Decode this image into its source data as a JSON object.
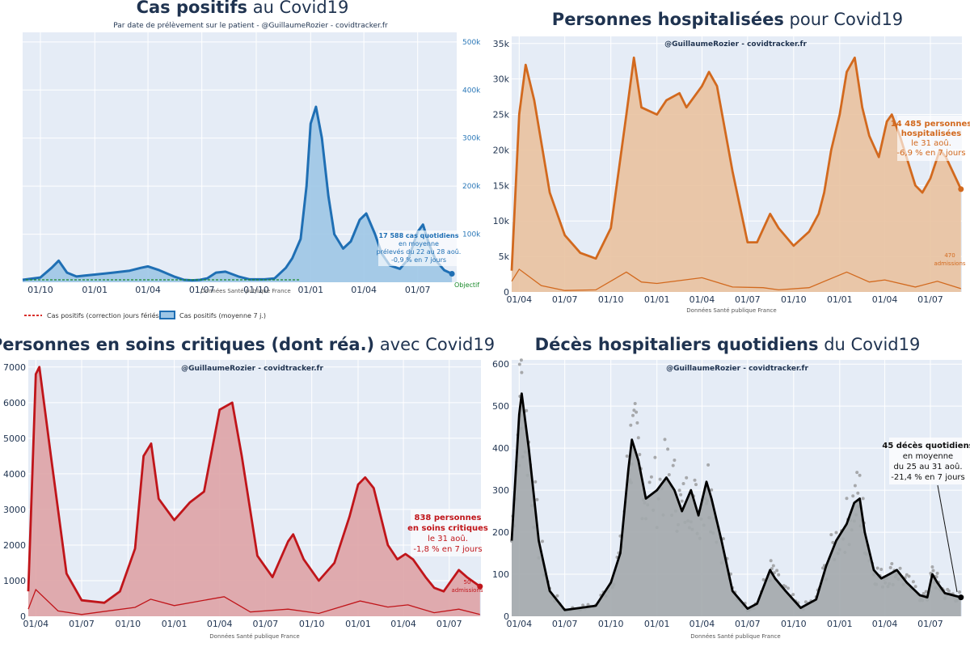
{
  "charts": [
    {
      "key": "cases",
      "title_bold": "Cas positifs",
      "title_rest": " au Covid19",
      "subtitle": "Par date de prélèvement sur le patient - @GuillaumeRozier - covidtracker.fr",
      "source": "Données Santé publique France",
      "x_ticks": [
        "01/10",
        "01/01",
        "01/04",
        "01/07",
        "01/10",
        "01/01",
        "01/04",
        "01/07"
      ],
      "y_ticks": [
        "500k",
        "400k",
        "300k",
        "200k",
        "100k",
        "0"
      ],
      "annotation": [
        "17 588 cas quotidiens",
        "en moyenne",
        "prélevés du 22 au 28 aoû.",
        "-0,9 % en 7 jours"
      ],
      "objective": "Objectif",
      "legend": [
        "Cas positifs (correction jours fériés)",
        "Cas positifs (moyenne 7 j.)"
      ],
      "colors": {
        "line": "#1f6fb4",
        "fill": "#9dc6e6",
        "objective": "#1a8a2a",
        "legend_dash": "#d9302c"
      }
    },
    {
      "key": "hosp",
      "title_bold": "Personnes hospitalisées",
      "title_rest": " pour Covid19",
      "credit": "@GuillaumeRozier - covidtracker.fr",
      "source": "Données Santé publique France",
      "x_ticks": [
        "01/04",
        "01/07",
        "01/10",
        "01/01",
        "01/04",
        "01/07",
        "01/10",
        "01/01",
        "01/04",
        "01/07"
      ],
      "y_ticks": [
        "35k",
        "30k",
        "25k",
        "20k",
        "15k",
        "10k",
        "5k",
        "0"
      ],
      "annotation": [
        "14 485 personnes",
        "hospitalisées",
        "le 31 aoû.",
        "-6,9 % en 7 jours"
      ],
      "admissions": [
        "470",
        "admissions"
      ],
      "colors": {
        "line": "#d2691e",
        "fill": "#e9c2a0"
      }
    },
    {
      "key": "icu",
      "title_bold": "Personnes en soins critiques (dont réa.)",
      "title_rest": " avec Covid19",
      "credit": "@GuillaumeRozier - covidtracker.fr",
      "source": "Données Santé publique France",
      "x_ticks": [
        "01/04",
        "01/07",
        "01/10",
        "01/01",
        "01/04",
        "01/07",
        "01/10",
        "01/01",
        "01/04",
        "01/07"
      ],
      "y_ticks": [
        "7000",
        "6000",
        "5000",
        "4000",
        "3000",
        "2000",
        "1000",
        "0"
      ],
      "annotation": [
        "838 personnes",
        "en soins critiques",
        "le 31 aoû.",
        "-1,8 % en 7 jours"
      ],
      "admissions": [
        "50",
        "admissions"
      ],
      "colors": {
        "line": "#c0151a",
        "fill": "#dea3a6"
      }
    },
    {
      "key": "deaths",
      "title_bold": "Décès hospitaliers quotidiens",
      "title_rest": " du Covid19",
      "credit": "@GuillaumeRozier - covidtracker.fr",
      "source": "Données Santé publique France",
      "x_ticks": [
        "01/04",
        "01/07",
        "01/10",
        "01/01",
        "01/04",
        "01/07",
        "01/10",
        "01/01",
        "01/04",
        "01/07"
      ],
      "y_ticks": [
        "600",
        "500",
        "400",
        "300",
        "200",
        "100",
        "0"
      ],
      "annotation": [
        "45 décès quotidiens",
        "en moyenne",
        "du 25 au 31 aoû.",
        "-21,4 % en 7 jours"
      ],
      "colors": {
        "line": "#000000",
        "fill": "#a3a8ac",
        "dots": "#a6a8ab"
      }
    }
  ],
  "chart_data": [
    {
      "type": "area",
      "title": "Cas positifs au Covid19",
      "ylabel": "",
      "ylim": [
        0,
        520000
      ],
      "series": [
        {
          "name": "Cas positifs (moyenne 7 j.)",
          "x": [
            "2020-09-01",
            "2020-10-01",
            "2020-10-20",
            "2020-11-01",
            "2020-11-15",
            "2020-12-01",
            "2020-12-15",
            "2021-01-01",
            "2021-02-01",
            "2021-03-01",
            "2021-03-20",
            "2021-04-01",
            "2021-04-20",
            "2021-05-15",
            "2021-06-01",
            "2021-06-15",
            "2021-06-28",
            "2021-07-10",
            "2021-07-25",
            "2021-08-10",
            "2021-09-01",
            "2021-09-20",
            "2021-10-15",
            "2021-11-01",
            "2021-11-20",
            "2021-12-01",
            "2021-12-15",
            "2021-12-25",
            "2022-01-01",
            "2022-01-10",
            "2022-01-20",
            "2022-01-31",
            "2022-02-10",
            "2022-02-25",
            "2022-03-10",
            "2022-03-25",
            "2022-04-05",
            "2022-04-20",
            "2022-05-01",
            "2022-05-15",
            "2022-06-01",
            "2022-06-15",
            "2022-07-01",
            "2022-07-10",
            "2022-07-20",
            "2022-08-01",
            "2022-08-15",
            "2022-08-28"
          ],
          "values": [
            5000,
            10000,
            30000,
            45000,
            20000,
            12000,
            14000,
            16000,
            20000,
            24000,
            30000,
            33000,
            25000,
            12000,
            5000,
            4000,
            5000,
            8000,
            20000,
            22000,
            12000,
            6000,
            6000,
            8000,
            30000,
            50000,
            90000,
            200000,
            330000,
            365000,
            300000,
            180000,
            100000,
            70000,
            85000,
            130000,
            143000,
            100000,
            60000,
            35000,
            28000,
            48000,
            105000,
            120000,
            80000,
            45000,
            25000,
            17588
          ]
        }
      ]
    },
    {
      "type": "area",
      "title": "Personnes hospitalisées pour Covid19",
      "ylim": [
        0,
        36000
      ],
      "series": [
        {
          "name": "Personnes hospitalisées",
          "x": [
            "2020-03-17",
            "2020-04-01",
            "2020-04-14",
            "2020-05-01",
            "2020-06-01",
            "2020-07-01",
            "2020-08-01",
            "2020-09-01",
            "2020-10-01",
            "2020-11-01",
            "2020-11-16",
            "2020-12-01",
            "2021-01-01",
            "2021-01-20",
            "2021-02-15",
            "2021-03-01",
            "2021-04-01",
            "2021-04-15",
            "2021-05-01",
            "2021-06-01",
            "2021-07-01",
            "2021-07-20",
            "2021-08-15",
            "2021-09-01",
            "2021-10-01",
            "2021-11-01",
            "2021-11-20",
            "2021-12-01",
            "2021-12-15",
            "2022-01-01",
            "2022-01-15",
            "2022-01-31",
            "2022-02-15",
            "2022-03-01",
            "2022-03-20",
            "2022-04-05",
            "2022-04-15",
            "2022-05-01",
            "2022-06-01",
            "2022-06-15",
            "2022-07-01",
            "2022-07-20",
            "2022-08-01",
            "2022-08-31"
          ],
          "values": [
            3000,
            25000,
            32000,
            27000,
            14000,
            8000,
            5500,
            4700,
            9000,
            25000,
            33000,
            26000,
            25000,
            27000,
            28000,
            26000,
            29000,
            31000,
            29000,
            17000,
            7000,
            7000,
            11000,
            9000,
            6500,
            8500,
            11000,
            14000,
            20000,
            25000,
            31000,
            33000,
            26000,
            22000,
            19000,
            24000,
            25000,
            22000,
            15000,
            14000,
            16000,
            20000,
            19000,
            14485
          ]
        },
        {
          "name": "admissions",
          "x": [
            "2020-03-17",
            "2020-04-01",
            "2020-05-15",
            "2020-07-01",
            "2020-09-01",
            "2020-11-01",
            "2020-12-01",
            "2021-01-01",
            "2021-04-01",
            "2021-06-01",
            "2021-08-01",
            "2021-09-01",
            "2021-11-01",
            "2022-01-15",
            "2022-03-01",
            "2022-04-01",
            "2022-06-01",
            "2022-07-15",
            "2022-08-31"
          ],
          "values": [
            1500,
            3200,
            900,
            200,
            300,
            2800,
            1400,
            1200,
            2000,
            700,
            600,
            300,
            600,
            2800,
            1400,
            1700,
            700,
            1500,
            470
          ]
        }
      ]
    },
    {
      "type": "area",
      "title": "Personnes en soins critiques (dont réa.) avec Covid19",
      "ylim": [
        0,
        7200
      ],
      "series": [
        {
          "name": "Personnes en soins critiques",
          "x": [
            "2020-03-17",
            "2020-04-01",
            "2020-04-08",
            "2020-05-01",
            "2020-06-01",
            "2020-07-01",
            "2020-08-15",
            "2020-09-15",
            "2020-10-15",
            "2020-11-01",
            "2020-11-16",
            "2020-12-01",
            "2021-01-01",
            "2021-02-01",
            "2021-03-01",
            "2021-04-01",
            "2021-04-26",
            "2021-05-15",
            "2021-06-15",
            "2021-07-15",
            "2021-08-15",
            "2021-08-25",
            "2021-09-15",
            "2021-10-15",
            "2021-11-15",
            "2021-12-15",
            "2022-01-01",
            "2022-01-15",
            "2022-02-01",
            "2022-03-01",
            "2022-03-20",
            "2022-04-05",
            "2022-04-20",
            "2022-05-15",
            "2022-06-01",
            "2022-06-20",
            "2022-07-05",
            "2022-07-20",
            "2022-08-05",
            "2022-08-31"
          ],
          "values": [
            700,
            6800,
            7000,
            4500,
            1200,
            450,
            380,
            700,
            1900,
            4500,
            4850,
            3300,
            2700,
            3200,
            3500,
            5800,
            6000,
            4500,
            1700,
            1100,
            2100,
            2300,
            1600,
            1000,
            1500,
            2800,
            3700,
            3900,
            3600,
            2000,
            1600,
            1750,
            1600,
            1100,
            800,
            700,
            1000,
            1300,
            1100,
            838
          ]
        },
        {
          "name": "admissions",
          "x": [
            "2020-03-17",
            "2020-04-01",
            "2020-05-15",
            "2020-07-01",
            "2020-10-15",
            "2020-11-15",
            "2021-01-01",
            "2021-04-10",
            "2021-06-01",
            "2021-08-15",
            "2021-10-15",
            "2022-01-05",
            "2022-03-01",
            "2022-04-10",
            "2022-06-01",
            "2022-07-20",
            "2022-08-31"
          ],
          "values": [
            200,
            750,
            150,
            50,
            250,
            480,
            300,
            550,
            120,
            200,
            80,
            430,
            260,
            320,
            100,
            200,
            50
          ]
        }
      ]
    },
    {
      "type": "line",
      "title": "Décès hospitaliers quotidiens du Covid19",
      "ylim": [
        0,
        610
      ],
      "series": [
        {
          "name": "Décès quotidiens (moyenne 7 j.)",
          "x": [
            "2020-03-17",
            "2020-04-01",
            "2020-04-06",
            "2020-04-20",
            "2020-05-10",
            "2020-06-01",
            "2020-07-01",
            "2020-08-01",
            "2020-09-01",
            "2020-10-01",
            "2020-10-20",
            "2020-11-05",
            "2020-11-12",
            "2020-11-25",
            "2020-12-10",
            "2021-01-01",
            "2021-01-20",
            "2021-02-05",
            "2021-02-20",
            "2021-03-10",
            "2021-03-25",
            "2021-04-10",
            "2021-04-20",
            "2021-05-10",
            "2021-06-01",
            "2021-07-01",
            "2021-07-20",
            "2021-08-15",
            "2021-08-25",
            "2021-09-15",
            "2021-10-15",
            "2021-11-15",
            "2021-12-05",
            "2021-12-25",
            "2022-01-15",
            "2022-01-30",
            "2022-02-10",
            "2022-02-20",
            "2022-03-10",
            "2022-03-25",
            "2022-04-10",
            "2022-04-25",
            "2022-05-15",
            "2022-06-10",
            "2022-06-25",
            "2022-07-05",
            "2022-07-15",
            "2022-07-30",
            "2022-08-15",
            "2022-08-31"
          ],
          "values": [
            180,
            480,
            530,
            400,
            180,
            60,
            15,
            20,
            25,
            80,
            150,
            350,
            420,
            370,
            280,
            300,
            330,
            300,
            250,
            300,
            240,
            320,
            280,
            180,
            60,
            18,
            30,
            110,
            90,
            60,
            20,
            40,
            120,
            180,
            220,
            270,
            280,
            200,
            110,
            90,
            100,
            110,
            80,
            50,
            45,
            100,
            80,
            55,
            50,
            45
          ]
        }
      ]
    }
  ]
}
